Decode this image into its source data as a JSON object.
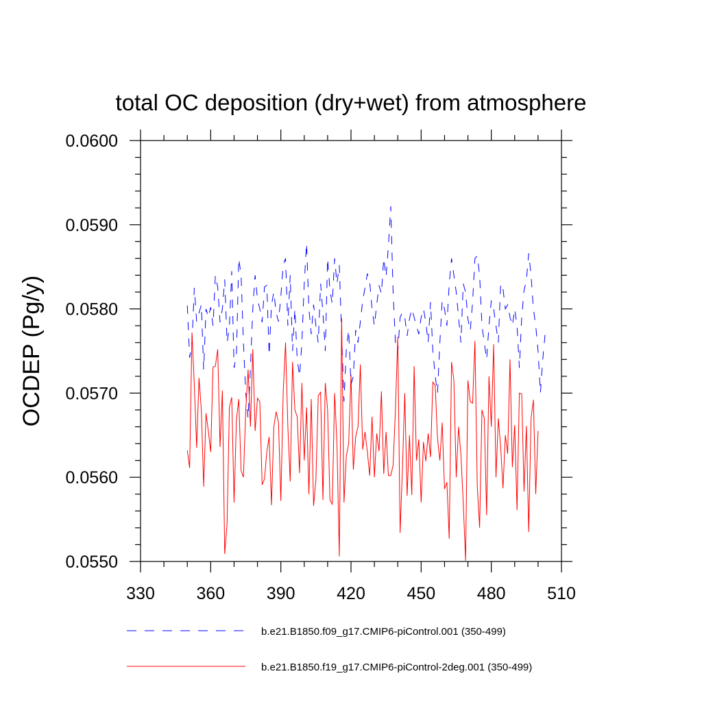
{
  "chart_data": {
    "type": "line",
    "title": "total OC deposition (dry+wet) from atmosphere",
    "xlabel": "",
    "ylabel": "OCDEP  (Pg/y)",
    "xlim": [
      330,
      510
    ],
    "ylim": [
      0.055,
      0.06
    ],
    "x_ticks": [
      330,
      360,
      390,
      420,
      450,
      480,
      510
    ],
    "x_tick_labels": [
      "330",
      "360",
      "390",
      "420",
      "450",
      "480",
      "510"
    ],
    "y_ticks": [
      0.055,
      0.056,
      0.057,
      0.058,
      0.059,
      0.06
    ],
    "y_tick_labels": [
      "0.0550",
      "0.0560",
      "0.0570",
      "0.0580",
      "0.0590",
      "0.0600"
    ],
    "grid": false,
    "legend_position": "bottom",
    "series": [
      {
        "name": "b.e21.B1850.f09_g17.CMIP6-piControl.001 (350-499)",
        "color": "#0000ff",
        "style": "dashed",
        "x_start": 350,
        "values": [
          0.05804,
          0.05742,
          0.0576,
          0.05825,
          0.05785,
          0.05795,
          0.05805,
          0.05728,
          0.058,
          0.0579,
          0.05802,
          0.0578,
          0.0584,
          0.05826,
          0.05784,
          0.058,
          0.05835,
          0.0576,
          0.05778,
          0.05845,
          0.0573,
          0.05745,
          0.0586,
          0.0584,
          0.0576,
          0.057,
          0.0567,
          0.0573,
          0.058,
          0.0584,
          0.05812,
          0.058,
          0.05784,
          0.05826,
          0.05828,
          0.05745,
          0.05805,
          0.0582,
          0.05795,
          0.05785,
          0.05815,
          0.05852,
          0.0586,
          0.0578,
          0.0584,
          0.0575,
          0.058,
          0.0574,
          0.0572,
          0.0576,
          0.0583,
          0.05878,
          0.058,
          0.0577,
          0.05805,
          0.0578,
          0.0576,
          0.0583,
          0.05795,
          0.0575,
          0.0586,
          0.05822,
          0.05806,
          0.0586,
          0.0583,
          0.05852,
          0.0577,
          0.0569,
          0.05752,
          0.05775,
          0.0571,
          0.0572,
          0.05775,
          0.0576,
          0.05785,
          0.0581,
          0.05825,
          0.05842,
          0.05832,
          0.058,
          0.0578,
          0.05805,
          0.05828,
          0.05818,
          0.0586,
          0.05838,
          0.05875,
          0.05922,
          0.0582,
          0.0576,
          0.05748,
          0.0579,
          0.05796,
          0.0579,
          0.05768,
          0.05788,
          0.058,
          0.0579,
          0.0578,
          0.0577,
          0.0579,
          0.058,
          0.05784,
          0.0576,
          0.05808,
          0.0575,
          0.0572,
          0.057,
          0.0576,
          0.0581,
          0.058,
          0.0578,
          0.0583,
          0.0586,
          0.0584,
          0.0582,
          0.0579,
          0.0576,
          0.0583,
          0.0582,
          0.05788,
          0.05774,
          0.05808,
          0.0586,
          0.05863,
          0.0584,
          0.0578,
          0.0576,
          0.0574,
          0.0578,
          0.0581,
          0.058,
          0.0578,
          0.0576,
          0.0583,
          0.05824,
          0.058,
          0.05805,
          0.0579,
          0.0578,
          0.058,
          0.0578,
          0.0573,
          0.0579,
          0.05822,
          0.05834,
          0.05866,
          0.0584,
          0.058,
          0.0578,
          0.0575,
          0.057,
          0.0574,
          0.0577
        ]
      },
      {
        "name": "b.e21.B1850.f19_g17.CMIP6-piControl-2deg.001 (350-499)",
        "color": "#ff0000",
        "style": "solid",
        "x_start": 350,
        "values": [
          0.05632,
          0.05611,
          0.05772,
          0.0571,
          0.05635,
          0.05718,
          0.0568,
          0.05589,
          0.05676,
          0.05655,
          0.0563,
          0.05731,
          0.05732,
          0.05752,
          0.05636,
          0.05703,
          0.05509,
          0.05545,
          0.05683,
          0.05695,
          0.0557,
          0.05668,
          0.05693,
          0.05608,
          0.056,
          0.0568,
          0.05728,
          0.0566,
          0.05752,
          0.05655,
          0.05694,
          0.0569,
          0.05591,
          0.05598,
          0.0563,
          0.05648,
          0.05567,
          0.0566,
          0.05678,
          0.05665,
          0.05572,
          0.057,
          0.0576,
          0.0566,
          0.05595,
          0.05737,
          0.0568,
          0.05672,
          0.05605,
          0.05712,
          0.0562,
          0.05683,
          0.0558,
          0.05693,
          0.05566,
          0.05597,
          0.05697,
          0.05701,
          0.05573,
          0.05712,
          0.0568,
          0.05573,
          0.05568,
          0.057,
          0.0564,
          0.05506,
          0.05789,
          0.0557,
          0.05625,
          0.0564,
          0.05722,
          0.05609,
          0.05648,
          0.0566,
          0.05734,
          0.05633,
          0.05654,
          0.0563,
          0.05602,
          0.05672,
          0.056,
          0.05652,
          0.05631,
          0.05702,
          0.05604,
          0.05654,
          0.05602,
          0.05602,
          0.05614,
          0.0568,
          0.05767,
          0.05534,
          0.0561,
          0.057,
          0.05578,
          0.0565,
          0.05579,
          0.05732,
          0.0562,
          0.05645,
          0.0557,
          0.05642,
          0.05619,
          0.05652,
          0.05624,
          0.05713,
          0.05709,
          0.05646,
          0.0562,
          0.05665,
          0.05586,
          0.05594,
          0.05527,
          0.05737,
          0.05715,
          0.056,
          0.0566,
          0.05627,
          0.0557,
          0.05501,
          0.05715,
          0.0569,
          0.05688,
          0.05762,
          0.05589,
          0.0554,
          0.0568,
          0.0567,
          0.05555,
          0.0572,
          0.0566,
          0.05758,
          0.056,
          0.0567,
          0.05636,
          0.05587,
          0.0565,
          0.05628,
          0.0574,
          0.05612,
          0.05662,
          0.05561,
          0.057,
          0.05699,
          0.05583,
          0.05661,
          0.05535,
          0.0567,
          0.05692,
          0.0558,
          0.05655
        ]
      }
    ]
  }
}
